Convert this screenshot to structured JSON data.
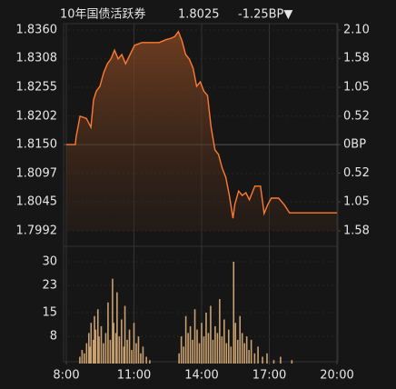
{
  "header": {
    "title": "10年国债活跃券",
    "price": "1.8025",
    "change": "-1.25BP▼"
  },
  "tick_colors": {
    "up": "#3dbb4a",
    "down": "#f0393b",
    "flat": "#e6e6e6"
  },
  "chart_data": [
    {
      "type": "line",
      "color": "#ff7a2e",
      "grid": true,
      "x": [
        8.0,
        8.4,
        8.44,
        8.61,
        8.89,
        9.09,
        9.21,
        9.33,
        9.49,
        9.66,
        9.82,
        9.98,
        10.14,
        10.3,
        10.46,
        10.63,
        10.79,
        11.03,
        11.35,
        11.72,
        12.12,
        12.4,
        12.65,
        12.81,
        12.97,
        13.13,
        13.29,
        13.45,
        13.62,
        13.78,
        13.94,
        14.1,
        14.26,
        14.42,
        14.59,
        14.75,
        14.91,
        15.07,
        15.23,
        15.39,
        15.47,
        15.64,
        15.8,
        15.96,
        16.12,
        16.36,
        16.61,
        16.77,
        16.93,
        17.09,
        17.41,
        17.66,
        17.9,
        20.0
      ],
      "values": [
        1.815,
        1.815,
        1.8165,
        1.8202,
        1.8198,
        1.8182,
        1.8232,
        1.8248,
        1.8257,
        1.8282,
        1.8298,
        1.8307,
        1.8323,
        1.8307,
        1.8315,
        1.8298,
        1.8312,
        1.8332,
        1.8337,
        1.8337,
        1.8337,
        1.8342,
        1.8345,
        1.8348,
        1.8357,
        1.834,
        1.8315,
        1.8307,
        1.829,
        1.8257,
        1.8265,
        1.8248,
        1.824,
        1.8182,
        1.814,
        1.8132,
        1.8107,
        1.809,
        1.8057,
        1.8015,
        1.804,
        1.8065,
        1.8057,
        1.8062,
        1.8049,
        1.8074,
        1.8074,
        1.8024,
        1.804,
        1.8052,
        1.8052,
        1.804,
        1.8025,
        1.8025
      ],
      "xlim": [
        8,
        20
      ],
      "xticks": [
        8,
        11,
        14,
        17,
        20
      ],
      "ylim": [
        1.7992,
        1.836
      ],
      "yticks": [
        {
          "value": 1.836,
          "label": "1.8360"
        },
        1.8308,
        1.8255,
        1.8202,
        {
          "value": 1.815,
          "label": "1.8150"
        },
        1.8097,
        1.8045,
        1.7992
      ],
      "y2lim": [
        -1.58,
        2.1
      ],
      "y2ticks": [
        {
          "value": 2.1,
          "label": "2.10"
        },
        1.58,
        1.05,
        0.52,
        {
          "value": 0,
          "label": "0BP"
        },
        {
          "value": -0.52,
          "label": "0.52"
        },
        {
          "value": -1.05,
          "label": "1.05"
        },
        {
          "value": -1.58,
          "label": "1.58"
        }
      ]
    },
    {
      "type": "bar",
      "color": "#c9a070",
      "x": [
        8.6,
        8.7,
        8.8,
        8.9,
        9.0,
        9.05,
        9.1,
        9.2,
        9.25,
        9.3,
        9.4,
        9.45,
        9.55,
        9.65,
        9.75,
        9.85,
        9.95,
        10.05,
        10.1,
        10.2,
        10.25,
        10.35,
        10.45,
        10.55,
        10.6,
        10.7,
        10.8,
        10.9,
        11.0,
        11.1,
        11.2,
        11.3,
        11.4,
        11.55,
        11.7,
        13.0,
        13.1,
        13.2,
        13.3,
        13.4,
        13.5,
        13.6,
        13.7,
        13.8,
        13.9,
        14.0,
        14.1,
        14.2,
        14.3,
        14.4,
        14.5,
        14.6,
        14.7,
        14.8,
        14.9,
        15.0,
        15.1,
        15.2,
        15.3,
        15.42,
        15.5,
        15.6,
        15.7,
        15.8,
        15.9,
        16.0,
        16.1,
        16.2,
        16.35,
        16.5,
        16.7,
        16.9,
        17.2,
        17.5,
        18.0
      ],
      "values": [
        2,
        4,
        3,
        6,
        9,
        5,
        12,
        7,
        14,
        10,
        16,
        8,
        11,
        6,
        9,
        18,
        7,
        25,
        12,
        9,
        21,
        8,
        13,
        5,
        17,
        7,
        10,
        4,
        12,
        6,
        8,
        3,
        5,
        2,
        1,
        3,
        8,
        5,
        14,
        9,
        11,
        7,
        16,
        10,
        6,
        12,
        8,
        15,
        9,
        17,
        7,
        11,
        9,
        19,
        8,
        13,
        6,
        10,
        5,
        30,
        12,
        7,
        14,
        9,
        6,
        8,
        4,
        7,
        3,
        5,
        2,
        3,
        1,
        2,
        1
      ],
      "xlim": [
        8,
        20
      ],
      "xticks": [
        {
          "value": 8,
          "label": "8:00"
        },
        {
          "value": 11,
          "label": "11:00"
        },
        {
          "value": 14,
          "label": "14:00"
        },
        {
          "value": 17,
          "label": "17:00"
        },
        {
          "value": 20,
          "label": "20:00"
        }
      ],
      "ylim": [
        0,
        30
      ],
      "yticks": [
        30,
        23,
        15,
        8
      ]
    }
  ]
}
